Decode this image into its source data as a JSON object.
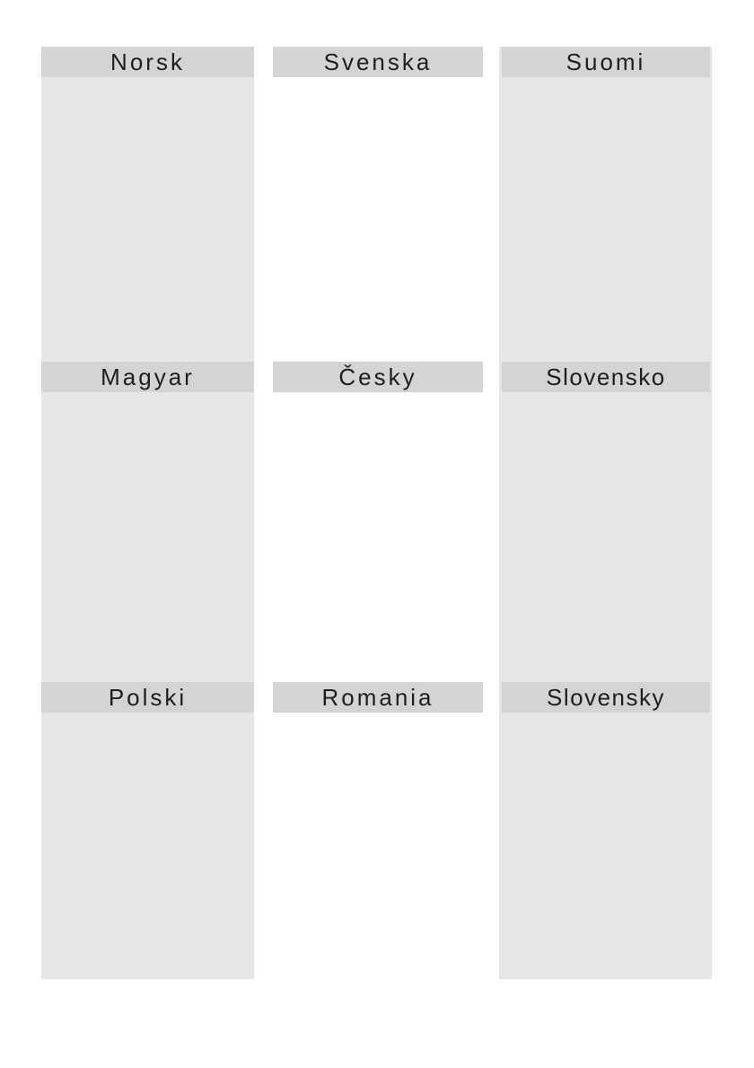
{
  "sections": [
    {
      "label": "Norsk"
    },
    {
      "label": "Svenska"
    },
    {
      "label": "Suomi"
    },
    {
      "label": "Magyar"
    },
    {
      "label": "Česky"
    },
    {
      "label": "Slovensko"
    },
    {
      "label": "Polski"
    },
    {
      "label": "Romania"
    },
    {
      "label": "Slovensky"
    }
  ],
  "colors": {
    "header_bg": "#d3d4d5",
    "column_bg": "#e5e6e7",
    "text": "#1e1e1e"
  }
}
